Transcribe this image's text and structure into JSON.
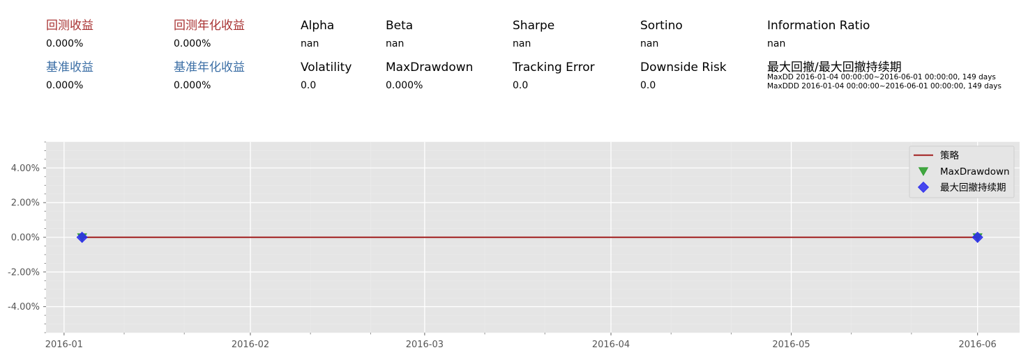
{
  "metrics": [
    {
      "key": "backtest_return",
      "label": "回测收益",
      "value": "0.000%",
      "label_color": "#a83232"
    },
    {
      "key": "backtest_annual_return",
      "label": "回测年化收益",
      "value": "0.000%",
      "label_color": "#a83232"
    },
    {
      "key": "alpha",
      "label": "Alpha",
      "value": "nan",
      "label_color": "#000000"
    },
    {
      "key": "beta",
      "label": "Beta",
      "value": "nan",
      "label_color": "#000000"
    },
    {
      "key": "sharpe",
      "label": "Sharpe",
      "value": "nan",
      "label_color": "#000000"
    },
    {
      "key": "sortino",
      "label": "Sortino",
      "value": "nan",
      "label_color": "#000000"
    },
    {
      "key": "information_ratio",
      "label": "Information Ratio",
      "value": "nan",
      "label_color": "#000000"
    },
    {
      "key": "benchmark_return",
      "label": "基准收益",
      "value": "0.000%",
      "label_color": "#3b6ea5"
    },
    {
      "key": "benchmark_annual_return",
      "label": "基准年化收益",
      "value": "0.000%",
      "label_color": "#3b6ea5"
    },
    {
      "key": "volatility",
      "label": "Volatility",
      "value": "0.0",
      "label_color": "#000000"
    },
    {
      "key": "max_drawdown",
      "label": "MaxDrawdown",
      "value": "0.000%",
      "label_color": "#000000"
    },
    {
      "key": "tracking_error",
      "label": "Tracking Error",
      "value": "0.0",
      "label_color": "#000000"
    },
    {
      "key": "downside_risk",
      "label": "Downside Risk",
      "value": "0.0",
      "label_color": "#000000"
    },
    {
      "key": "max_dd_duration",
      "label": "最大回撤/最大回撤持续期",
      "value_lines": [
        "MaxDD  2016-01-04 00:00:00~2016-06-01 00:00:00, 149 days",
        "MaxDDD 2016-01-04 00:00:00~2016-06-01 00:00:00, 149 days"
      ],
      "label_color": "#000000"
    }
  ],
  "chart_data": {
    "type": "line",
    "x_type": "date",
    "xlim": [
      "2015-12-29",
      "2016-06-08"
    ],
    "ylim": [
      -5.5,
      5.5
    ],
    "y_unit": "%",
    "x_ticks": [
      {
        "date": "2016-01-01",
        "label": "2016-01"
      },
      {
        "date": "2016-02-01",
        "label": "2016-02"
      },
      {
        "date": "2016-03-01",
        "label": "2016-03"
      },
      {
        "date": "2016-04-01",
        "label": "2016-04"
      },
      {
        "date": "2016-05-01",
        "label": "2016-05"
      },
      {
        "date": "2016-06-01",
        "label": "2016-06"
      }
    ],
    "y_ticks": [
      {
        "value": 4,
        "label": "4.00%"
      },
      {
        "value": 2,
        "label": "2.00%"
      },
      {
        "value": 0,
        "label": "0.00%"
      },
      {
        "value": -2,
        "label": "-2.00%"
      },
      {
        "value": -4,
        "label": "-4.00%"
      }
    ],
    "grid": true,
    "legend_position": "top-right",
    "series": [
      {
        "name": "策略",
        "kind": "line",
        "color": "#a83232",
        "points": [
          {
            "x": "2016-01-04",
            "y": 0
          },
          {
            "x": "2016-06-01",
            "y": 0
          }
        ]
      },
      {
        "name": "MaxDrawdown",
        "kind": "marker",
        "marker": "triangle-down",
        "color": "#2e9e2e",
        "points": [
          {
            "x": "2016-01-04",
            "y": 0
          },
          {
            "x": "2016-06-01",
            "y": 0
          }
        ]
      },
      {
        "name": "最大回撤持续期",
        "kind": "marker",
        "marker": "diamond",
        "color": "#2a2aee",
        "points": [
          {
            "x": "2016-01-04",
            "y": 0
          },
          {
            "x": "2016-06-01",
            "y": 0
          }
        ]
      }
    ]
  }
}
